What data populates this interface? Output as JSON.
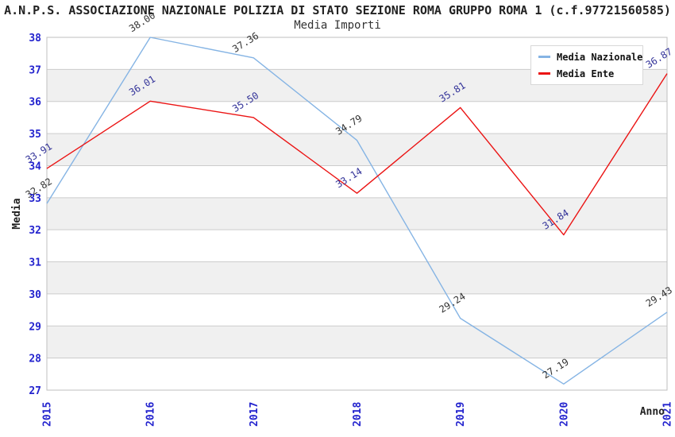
{
  "chart_data": {
    "type": "line",
    "title": "A.N.P.S. ASSOCIAZIONE NAZIONALE POLIZIA DI STATO SEZIONE ROMA GRUPPO ROMA 1 (c.f.97721560585)",
    "subtitle": "Media Importi",
    "xlabel": "Anno",
    "ylabel": "Media",
    "categories": [
      "2015",
      "2016",
      "2017",
      "2018",
      "2019",
      "2020",
      "2021"
    ],
    "series": [
      {
        "name": "Media Nazionale",
        "color": "#85B4E4",
        "label_color": "#333333",
        "values": [
          32.82,
          38.0,
          37.36,
          34.79,
          29.24,
          27.19,
          29.43
        ]
      },
      {
        "name": "Media Ente",
        "color": "#EB1414",
        "label_color": "#333399",
        "values": [
          33.91,
          36.01,
          35.5,
          33.14,
          35.81,
          31.84,
          36.87
        ]
      }
    ],
    "ylim": [
      27,
      38
    ],
    "ytick_step": 1,
    "value_label_decimals": 2,
    "grid": "horizontal-bands",
    "legend_position": "top-right",
    "colors": {
      "tick_label": "#2323CE",
      "band_fill": "#F0F0F0",
      "gridline": "#CCCCCC",
      "plot_border": "#BFBFBF",
      "title_text": "#222222",
      "subtitle_text": "#333333"
    }
  }
}
